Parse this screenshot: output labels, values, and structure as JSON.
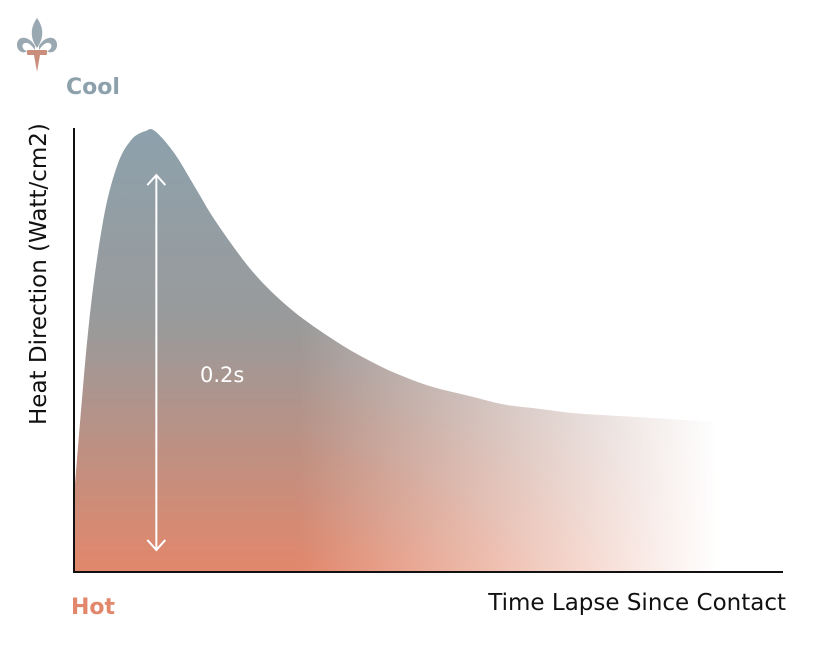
{
  "colors": {
    "cool": "#8da1ac",
    "hot": "#e2876b",
    "mid": "#9a9a9a",
    "logo": "#9aa8b2",
    "logo_accent": "#c98f7c",
    "axis": "#111111"
  },
  "logo": {
    "icon": "fleur-de-lis-icon"
  },
  "labels": {
    "cool": "Cool",
    "hot": "Hot"
  },
  "chart_data": {
    "type": "area",
    "xlabel": "Time Lapse Since Contact",
    "ylabel": "Heat Direction (Watt/cm2)",
    "grid": false,
    "legend": "none",
    "xlim": [
      0,
      1
    ],
    "ylim": [
      0,
      1
    ],
    "curve": {
      "x": [
        0,
        0.02,
        0.04,
        0.06,
        0.08,
        0.1,
        0.113,
        0.14,
        0.17,
        0.2,
        0.25,
        0.3,
        0.35,
        0.4,
        0.45,
        0.5,
        0.55,
        0.6,
        0.65,
        0.7,
        0.75,
        0.8,
        0.85,
        0.9
      ],
      "y": [
        0.17,
        0.55,
        0.79,
        0.92,
        0.98,
        1.0,
        1.0,
        0.95,
        0.87,
        0.79,
        0.68,
        0.6,
        0.54,
        0.49,
        0.45,
        0.42,
        0.4,
        0.38,
        0.37,
        0.36,
        0.355,
        0.35,
        0.345,
        0.34
      ]
    },
    "annotation": {
      "text": "0.2s",
      "arrow_x": 0.115,
      "arrow_from": 0.05,
      "arrow_to": 0.9
    }
  }
}
